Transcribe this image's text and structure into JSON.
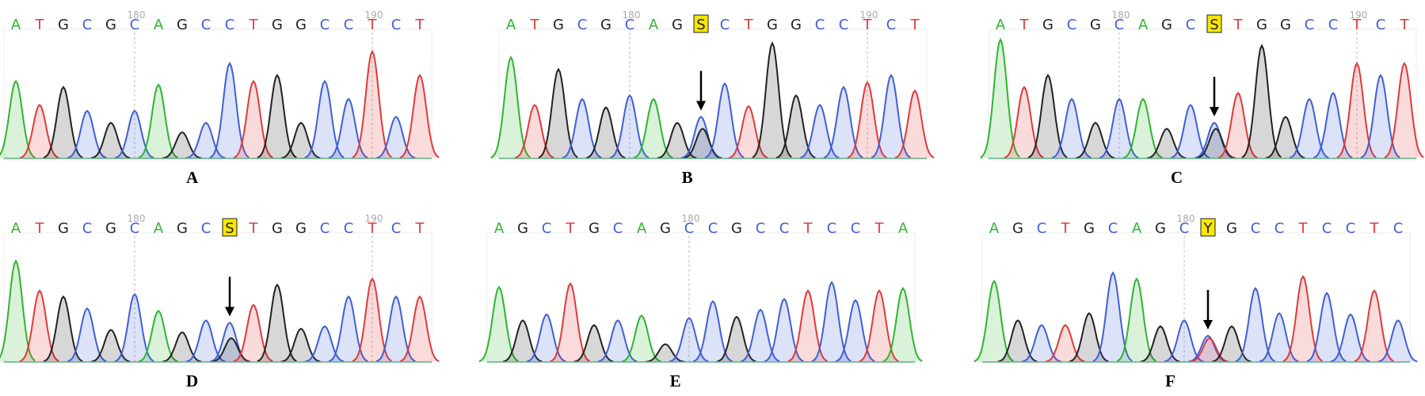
{
  "panels": [
    {
      "label": "A",
      "bases": [
        "A",
        "T",
        "G",
        "C",
        "G",
        "C",
        "A",
        "G",
        "C",
        "C",
        "T",
        "G",
        "G",
        "C",
        "C",
        "T",
        "C",
        "T"
      ],
      "peaks": [
        65,
        45,
        60,
        40,
        30,
        40,
        62,
        22,
        30,
        80,
        65,
        70,
        30,
        65,
        50,
        90,
        35,
        70
      ],
      "markers": [
        {
          "text": "180",
          "at": 5
        },
        {
          "text": "190",
          "at": 15
        }
      ]
    },
    {
      "label": "B",
      "bases": [
        "A",
        "T",
        "G",
        "C",
        "G",
        "C",
        "A",
        "G",
        "S",
        "C",
        "T",
        "G",
        "G",
        "C",
        "C",
        "T",
        "C",
        "T"
      ],
      "peaks": [
        85,
        45,
        75,
        50,
        43,
        53,
        50,
        30,
        [
          35,
          25
        ],
        63,
        44,
        97,
        53,
        45,
        60,
        64,
        70,
        57
      ],
      "markers": [
        {
          "text": "180",
          "at": 5
        },
        {
          "text": "190",
          "at": 15
        }
      ]
    },
    {
      "label": "C",
      "bases": [
        "A",
        "T",
        "G",
        "C",
        "G",
        "C",
        "A",
        "G",
        "C",
        "S",
        "T",
        "G",
        "G",
        "C",
        "C",
        "T",
        "C",
        "T"
      ],
      "peaks": [
        100,
        60,
        70,
        50,
        30,
        50,
        50,
        25,
        45,
        [
          30,
          25
        ],
        55,
        95,
        35,
        50,
        55,
        80,
        70,
        80
      ],
      "markers": [
        {
          "text": "180",
          "at": 5
        },
        {
          "text": "190",
          "at": 15
        }
      ]
    },
    {
      "label": "D",
      "bases": [
        "A",
        "T",
        "G",
        "C",
        "G",
        "C",
        "A",
        "G",
        "C",
        "S",
        "T",
        "G",
        "G",
        "C",
        "C",
        "T",
        "C",
        "T"
      ],
      "peaks": [
        85,
        60,
        55,
        45,
        27,
        57,
        43,
        25,
        35,
        [
          33,
          20
        ],
        48,
        65,
        28,
        30,
        55,
        70,
        55,
        55
      ],
      "markers": [
        {
          "text": "180",
          "at": 5
        },
        {
          "text": "190",
          "at": 15
        }
      ]
    },
    {
      "label": "E",
      "bases": [
        "A",
        "G",
        "C",
        "T",
        "G",
        "C",
        "A",
        "G",
        "C",
        "C",
        "G",
        "C",
        "C",
        "T",
        "C",
        "C",
        "T",
        "A"
      ],
      "peaks": [
        63,
        35,
        40,
        66,
        31,
        35,
        39,
        15,
        37,
        51,
        38,
        44,
        53,
        60,
        67,
        52,
        60,
        62
      ],
      "markers": [
        {
          "text": "180",
          "at": 8
        }
      ]
    },
    {
      "label": "F",
      "bases": [
        "A",
        "G",
        "C",
        "T",
        "G",
        "C",
        "A",
        "G",
        "C",
        "Y",
        "G",
        "C",
        "C",
        "T",
        "C",
        "C",
        "T",
        "C"
      ],
      "peaks": [
        68,
        35,
        31,
        31,
        41,
        75,
        70,
        30,
        35,
        [
          22,
          20
        ],
        30,
        62,
        41,
        72,
        58,
        40,
        60,
        35
      ],
      "markers": [
        {
          "text": "180",
          "at": 8
        }
      ]
    }
  ]
}
